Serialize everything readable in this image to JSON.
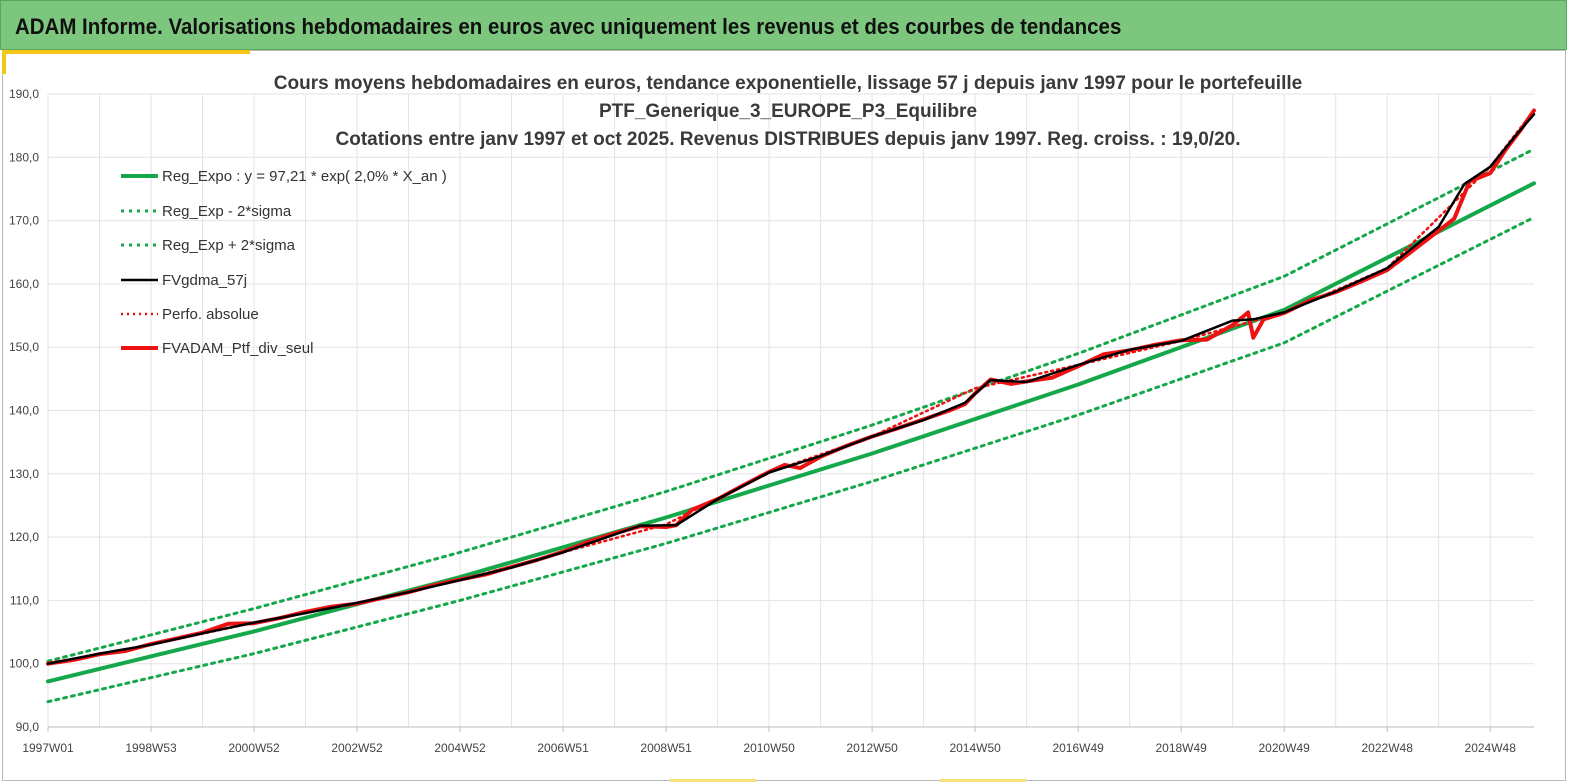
{
  "header": {
    "title": "ADAM Informe. Valorisations hebdomadaires en euros avec uniquement les revenus et des courbes de tendances"
  },
  "chart_data": {
    "type": "line",
    "title_lines": [
      "Cours moyens hebdomadaires  en euros, tendance exponentielle, lissage 57 j depuis janv 1997 pour le portefeuille",
      "PTF_Generique_3_EUROPE_P3_Equilibre",
      "Cotations  entre janv 1997 et oct 2025. Revenus DISTRIBUES  depuis janv 1997. Reg. croiss. : 19,0/20."
    ],
    "xlabel": "",
    "ylabel": "",
    "x_tick_labels": [
      "1997W01",
      "1998W53",
      "2000W52",
      "2002W52",
      "2004W52",
      "2006W51",
      "2008W51",
      "2010W50",
      "2012W50",
      "2014W50",
      "2016W49",
      "2018W49",
      "2020W49",
      "2022W48",
      "2024W48"
    ],
    "x_tick_years": [
      1997.0,
      1999.0,
      2001.0,
      2003.0,
      2005.0,
      2007.0,
      2009.0,
      2011.0,
      2013.0,
      2015.0,
      2017.0,
      2019.0,
      2021.0,
      2023.0,
      2025.0
    ],
    "y_tick_labels": [
      "90,0",
      "100,0",
      "110,0",
      "120,0",
      "130,0",
      "140,0",
      "150,0",
      "160,0",
      "170,0",
      "180,0",
      "190,0"
    ],
    "ylim": [
      90,
      190
    ],
    "xlim": [
      1997.0,
      2025.85
    ],
    "grid": "vertical and horizontal",
    "legend_position": "top-left",
    "colors": {
      "green": "#14a84a",
      "black": "#000000",
      "red": "#ee1111",
      "grid": "#e3e3e3"
    },
    "series": [
      {
        "name": "Reg_Expo : y = 97,21 * exp( 2,0% *  X_an )",
        "style": "solid",
        "color": "#14a84a",
        "points": [
          [
            1997.0,
            97.2
          ],
          [
            2001.0,
            105.1
          ],
          [
            2005.0,
            113.7
          ],
          [
            2009.0,
            123.1
          ],
          [
            2013.0,
            133.2
          ],
          [
            2017.0,
            144.1
          ],
          [
            2021.0,
            155.9
          ],
          [
            2025.85,
            175.9
          ]
        ]
      },
      {
        "name": "Reg_Exp - 2*sigma",
        "style": "dotted",
        "color": "#14a84a",
        "points": [
          [
            1997.0,
            94.0
          ],
          [
            2001.0,
            101.6
          ],
          [
            2005.0,
            110.0
          ],
          [
            2009.0,
            119.0
          ],
          [
            2013.0,
            128.8
          ],
          [
            2017.0,
            139.3
          ],
          [
            2021.0,
            150.7
          ],
          [
            2025.85,
            170.5
          ]
        ]
      },
      {
        "name": "Reg_Exp + 2*sigma",
        "style": "dotted",
        "color": "#14a84a",
        "points": [
          [
            1997.0,
            100.4
          ],
          [
            2001.0,
            108.7
          ],
          [
            2005.0,
            117.6
          ],
          [
            2009.0,
            127.2
          ],
          [
            2013.0,
            137.7
          ],
          [
            2017.0,
            149.0
          ],
          [
            2021.0,
            161.2
          ],
          [
            2025.85,
            181.3
          ]
        ]
      },
      {
        "name": "FVgdma_57j",
        "style": "solid",
        "color": "#000000",
        "points": [
          [
            1997.0,
            100.0
          ],
          [
            1998.0,
            101.6
          ],
          [
            1999.0,
            103.0
          ],
          [
            2000.0,
            104.8
          ],
          [
            2001.0,
            106.5
          ],
          [
            2002.0,
            108.0
          ],
          [
            2003.0,
            109.6
          ],
          [
            2004.0,
            111.3
          ],
          [
            2005.0,
            113.2
          ],
          [
            2006.0,
            115.2
          ],
          [
            2007.0,
            117.6
          ],
          [
            2008.0,
            120.4
          ],
          [
            2008.5,
            121.8
          ],
          [
            2009.2,
            121.9
          ],
          [
            2010.0,
            126.0
          ],
          [
            2011.0,
            130.2
          ],
          [
            2012.0,
            132.8
          ],
          [
            2013.0,
            135.9
          ],
          [
            2014.0,
            138.5
          ],
          [
            2014.8,
            141.2
          ],
          [
            2015.3,
            144.8
          ],
          [
            2016.0,
            144.5
          ],
          [
            2017.0,
            147.2
          ],
          [
            2018.0,
            149.6
          ],
          [
            2019.0,
            151.0
          ],
          [
            2020.0,
            154.2
          ],
          [
            2020.4,
            154.4
          ],
          [
            2021.0,
            155.5
          ],
          [
            2022.0,
            158.8
          ],
          [
            2023.0,
            162.5
          ],
          [
            2024.0,
            169.0
          ],
          [
            2024.5,
            175.8
          ],
          [
            2025.0,
            178.5
          ],
          [
            2025.5,
            183.5
          ],
          [
            2025.85,
            186.8
          ]
        ]
      },
      {
        "name": "Perfo. absolue",
        "style": "dotted",
        "color": "#ee1111",
        "points": [
          [
            1997.0,
            100.0
          ],
          [
            1999.0,
            103.0
          ],
          [
            2001.0,
            106.5
          ],
          [
            2003.0,
            109.6
          ],
          [
            2005.0,
            113.2
          ],
          [
            2007.0,
            117.6
          ],
          [
            2009.0,
            122.0
          ],
          [
            2011.0,
            130.2
          ],
          [
            2013.0,
            135.9
          ],
          [
            2015.0,
            143.5
          ],
          [
            2017.0,
            147.2
          ],
          [
            2019.0,
            151.0
          ],
          [
            2021.0,
            155.5
          ],
          [
            2023.0,
            162.5
          ],
          [
            2025.0,
            178.5
          ],
          [
            2025.85,
            187.4
          ]
        ]
      },
      {
        "name": "FVADAM_Ptf_div_seul",
        "style": "solid",
        "color": "#ee1111",
        "points": [
          [
            1997.0,
            100.0
          ],
          [
            1997.5,
            100.6
          ],
          [
            1998.0,
            101.5
          ],
          [
            1998.5,
            102.0
          ],
          [
            1999.0,
            103.1
          ],
          [
            1999.5,
            104.0
          ],
          [
            2000.0,
            104.9
          ],
          [
            2000.5,
            106.3
          ],
          [
            2001.0,
            106.4
          ],
          [
            2001.5,
            107.2
          ],
          [
            2002.0,
            108.2
          ],
          [
            2002.5,
            109.0
          ],
          [
            2003.0,
            109.5
          ],
          [
            2003.5,
            110.4
          ],
          [
            2004.0,
            111.3
          ],
          [
            2004.5,
            112.4
          ],
          [
            2005.0,
            113.3
          ],
          [
            2005.5,
            114.1
          ],
          [
            2006.0,
            115.3
          ],
          [
            2006.5,
            116.4
          ],
          [
            2007.0,
            117.7
          ],
          [
            2007.5,
            119.3
          ],
          [
            2008.0,
            120.6
          ],
          [
            2008.5,
            121.7
          ],
          [
            2009.0,
            121.6
          ],
          [
            2009.2,
            121.9
          ],
          [
            2009.5,
            124.3
          ],
          [
            2010.0,
            126.0
          ],
          [
            2010.5,
            128.2
          ],
          [
            2011.0,
            130.3
          ],
          [
            2011.3,
            131.4
          ],
          [
            2011.6,
            130.9
          ],
          [
            2012.0,
            132.7
          ],
          [
            2012.5,
            134.4
          ],
          [
            2013.0,
            135.9
          ],
          [
            2013.5,
            137.2
          ],
          [
            2014.0,
            138.6
          ],
          [
            2014.5,
            140.0
          ],
          [
            2014.8,
            141.0
          ],
          [
            2015.0,
            142.7
          ],
          [
            2015.3,
            144.9
          ],
          [
            2015.7,
            144.2
          ],
          [
            2016.0,
            144.6
          ],
          [
            2016.5,
            145.2
          ],
          [
            2017.0,
            147.0
          ],
          [
            2017.5,
            148.9
          ],
          [
            2018.0,
            149.5
          ],
          [
            2018.5,
            150.4
          ],
          [
            2019.0,
            151.1
          ],
          [
            2019.5,
            151.2
          ],
          [
            2020.0,
            153.5
          ],
          [
            2020.3,
            155.5
          ],
          [
            2020.4,
            151.5
          ],
          [
            2020.6,
            154.4
          ],
          [
            2021.0,
            155.4
          ],
          [
            2021.5,
            157.4
          ],
          [
            2022.0,
            158.7
          ],
          [
            2022.5,
            160.4
          ],
          [
            2023.0,
            162.2
          ],
          [
            2023.5,
            165.3
          ],
          [
            2024.0,
            168.4
          ],
          [
            2024.3,
            170.3
          ],
          [
            2024.6,
            176.2
          ],
          [
            2025.0,
            177.5
          ],
          [
            2025.3,
            181.2
          ],
          [
            2025.6,
            184.4
          ],
          [
            2025.85,
            187.4
          ]
        ]
      }
    ]
  }
}
